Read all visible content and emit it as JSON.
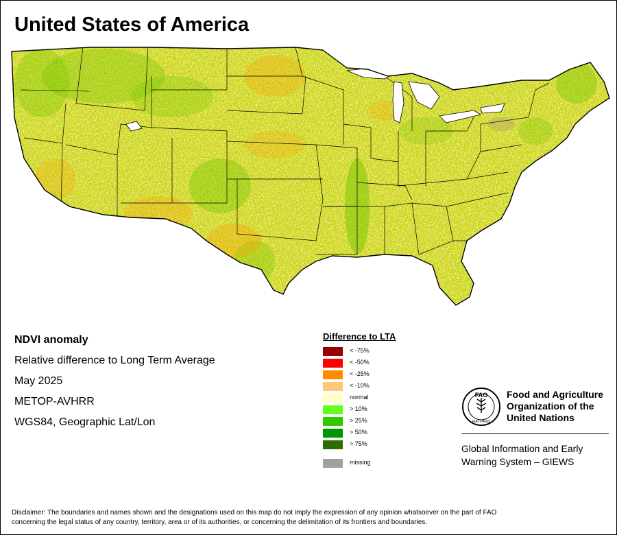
{
  "title": "United States of America",
  "info": {
    "product": "NDVI anomaly",
    "description": "Relative difference to Long Term Average",
    "period": "May 2025",
    "sensor": "METOP-AVHRR",
    "projection": "WGS84, Geographic Lat/Lon"
  },
  "legend": {
    "title": "Difference to LTA",
    "items": [
      {
        "label": "< -75%",
        "color": "#990000"
      },
      {
        "label": "< -50%",
        "color": "#ff0000"
      },
      {
        "label": "< -25%",
        "color": "#ff8c00"
      },
      {
        "label": "< -10%",
        "color": "#ffc878"
      },
      {
        "label": "normal",
        "color": "#ffffc8"
      },
      {
        "label": "> 10%",
        "color": "#64ff1e"
      },
      {
        "label": "> 25%",
        "color": "#32c800"
      },
      {
        "label": "> 50%",
        "color": "#009600"
      },
      {
        "label": "> 75%",
        "color": "#2d6e00"
      }
    ],
    "missing": {
      "label": "missing",
      "color": "#a0a0a0"
    }
  },
  "organization": {
    "name_line1": "Food and Agriculture",
    "name_line2": "Organization of the",
    "name_line3": "United Nations",
    "logo_text": "FAO",
    "logo_motto": "FIAT PANIS",
    "system_line1": "Global Information and Early",
    "system_line2": "Warning System – GIEWS"
  },
  "disclaimer_line1": "Disclaimer: The boundaries and names shown and the designations used on this map do not imply the expression of any opinion whatsoever on the part of FAO",
  "disclaimer_line2": "concerning the legal status of any country, territory, area or of its authorities, or concerning the delimitation of its frontiers and boundaries."
}
